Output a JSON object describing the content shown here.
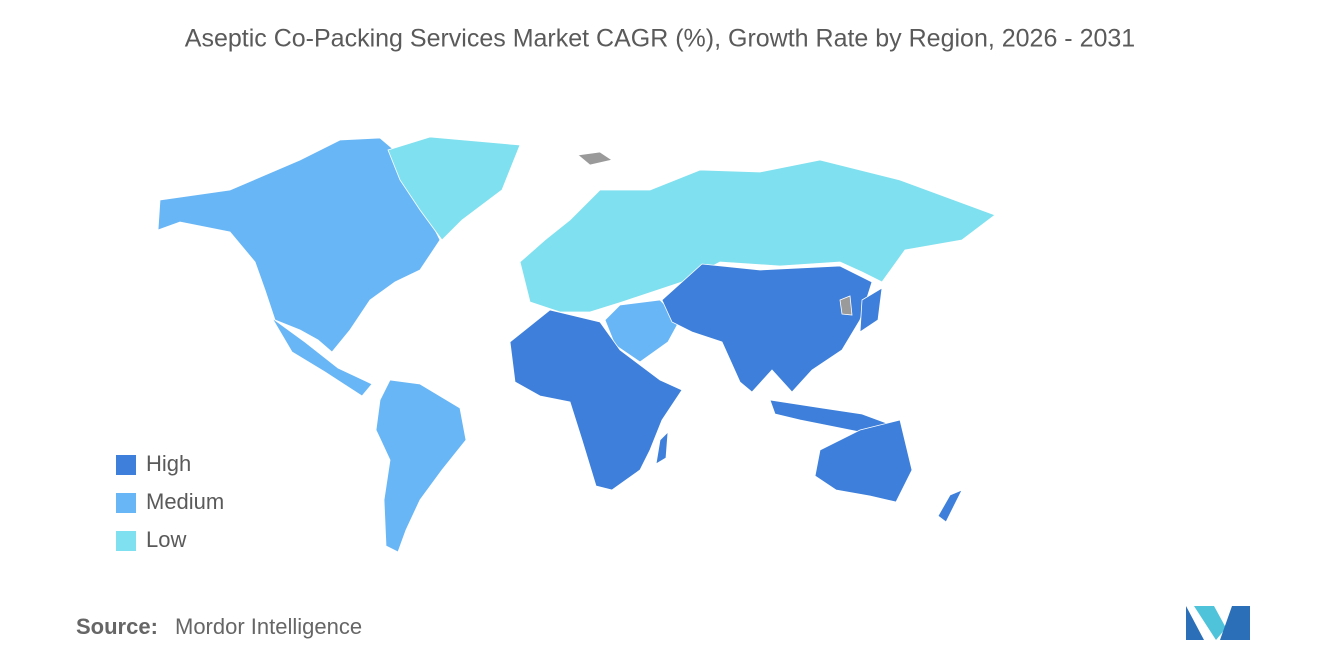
{
  "title": "Aseptic Co-Packing Services Market CAGR (%), Growth Rate by Region, 2026 - 2031",
  "legend": [
    {
      "label": "High",
      "color": "#3d7fda"
    },
    {
      "label": "Medium",
      "color": "#68b6f6"
    },
    {
      "label": "Low",
      "color": "#7fe0ef"
    }
  ],
  "source": {
    "label": "Source:",
    "text": "Mordor Intelligence"
  }
}
